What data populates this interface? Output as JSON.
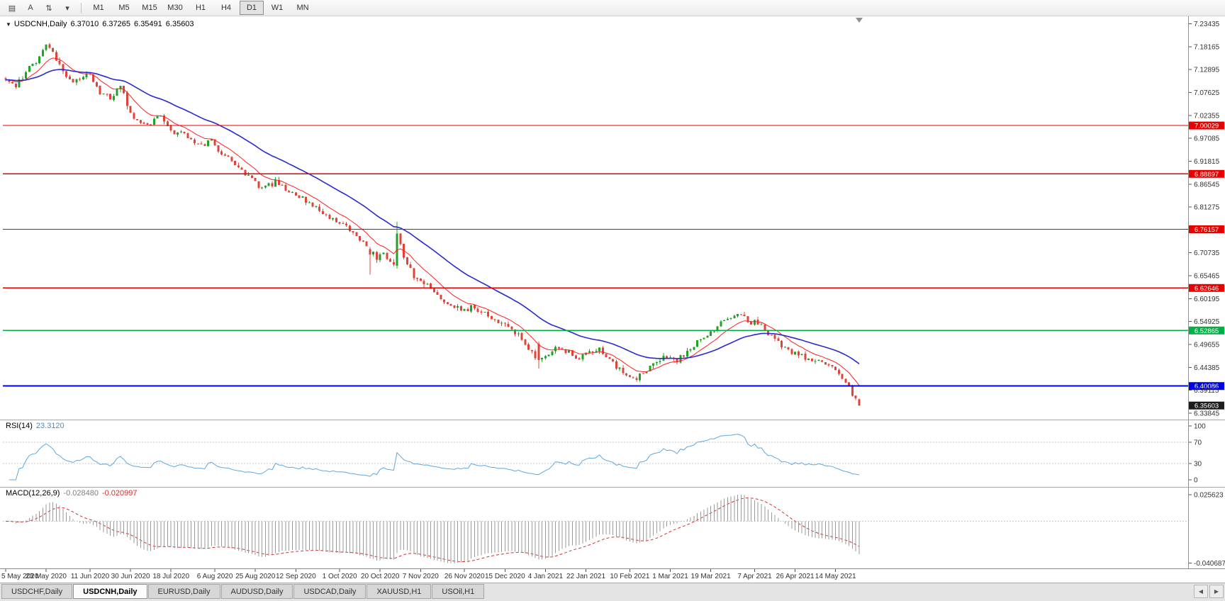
{
  "toolbar": {
    "tools": [
      {
        "name": "chart-list-icon",
        "glyph": "▤"
      },
      {
        "name": "text-tool-icon",
        "glyph": "A"
      },
      {
        "name": "sort-arrows-icon",
        "glyph": "⇅"
      },
      {
        "name": "dropdown-arrow-icon",
        "glyph": "▾"
      }
    ],
    "timeframes": [
      {
        "label": "M1",
        "active": false
      },
      {
        "label": "M5",
        "active": false
      },
      {
        "label": "M15",
        "active": false
      },
      {
        "label": "M30",
        "active": false
      },
      {
        "label": "H1",
        "active": false
      },
      {
        "label": "H4",
        "active": false
      },
      {
        "label": "D1",
        "active": true
      },
      {
        "label": "W1",
        "active": false
      },
      {
        "label": "MN",
        "active": false
      }
    ]
  },
  "tabs": {
    "scroll_left": "◀",
    "scroll_right": "▶",
    "items": [
      {
        "label": "USDCHF,Daily",
        "active": false
      },
      {
        "label": "USDCNH,Daily",
        "active": true
      },
      {
        "label": "EURUSD,Daily",
        "active": false
      },
      {
        "label": "AUDUSD,Daily",
        "active": false
      },
      {
        "label": "USDCAD,Daily",
        "active": false
      },
      {
        "label": "XAUUSD,H1",
        "active": false
      },
      {
        "label": "USOil,H1",
        "active": false
      }
    ]
  },
  "chart_data": {
    "type": "candlestick",
    "symbol": "USDCNH",
    "timeframe": "Daily",
    "title": "USDCNH,Daily",
    "title_dropdown": "▼",
    "ohlc": {
      "open": "6.37010",
      "high": "6.37265",
      "low": "6.35491",
      "close": "6.35603"
    },
    "bars": 254,
    "seed": 11,
    "candle_up_color": "#23a127",
    "candle_down_color": "#e04438",
    "price_axis": {
      "min": 6.327,
      "max": 7.245,
      "labels": [
        "7.23435",
        "7.18165",
        "7.12895",
        "7.07625",
        "7.02355",
        "6.97085",
        "6.91815",
        "6.86545",
        "6.81275",
        "6.70735",
        "6.65465",
        "6.60195",
        "6.54925",
        "6.49655",
        "6.44385",
        "6.39115",
        "6.33845"
      ]
    },
    "hlines": [
      {
        "price": 7.00029,
        "label": "7.00029",
        "color": "#e80000",
        "width": 1.2
      },
      {
        "price": 6.88897,
        "label": "6.88897",
        "color": "#e80000",
        "width": 1.2
      },
      {
        "price": 6.76157,
        "label": "6.76157",
        "color": "#e80000",
        "width": 1.2
      },
      {
        "price": 6.62646,
        "label": "6.62646",
        "color": "#e80000",
        "width": 1.2
      },
      {
        "price": 6.52865,
        "label": "6.52865",
        "color": "#00b044",
        "width": 1.5
      },
      {
        "price": 6.40086,
        "label": "6.40086",
        "color": "#0000e8",
        "width": 2
      }
    ],
    "current_price": {
      "value": 6.35603,
      "label": "6.35603"
    },
    "moving_averages": [
      {
        "period": 10,
        "type": "ema",
        "color": "#ff2020",
        "width": 1
      },
      {
        "period": 34,
        "type": "ema",
        "color": "#2a2ad2",
        "width": 1.6
      }
    ],
    "trend_anchors": [
      [
        0,
        7.105
      ],
      [
        3,
        7.09
      ],
      [
        6,
        7.125
      ],
      [
        9,
        7.15
      ],
      [
        12,
        7.185
      ],
      [
        14,
        7.17
      ],
      [
        17,
        7.125
      ],
      [
        20,
        7.1
      ],
      [
        24,
        7.125
      ],
      [
        28,
        7.075
      ],
      [
        31,
        7.065
      ],
      [
        34,
        7.09
      ],
      [
        38,
        7.01
      ],
      [
        42,
        7.005
      ],
      [
        46,
        7.02
      ],
      [
        50,
        6.985
      ],
      [
        54,
        6.975
      ],
      [
        58,
        6.955
      ],
      [
        61,
        6.965
      ],
      [
        64,
        6.935
      ],
      [
        68,
        6.91
      ],
      [
        72,
        6.885
      ],
      [
        76,
        6.855
      ],
      [
        80,
        6.87
      ],
      [
        84,
        6.845
      ],
      [
        88,
        6.835
      ],
      [
        92,
        6.81
      ],
      [
        96,
        6.79
      ],
      [
        100,
        6.775
      ],
      [
        104,
        6.745
      ],
      [
        107,
        6.72
      ],
      [
        110,
        6.695
      ],
      [
        112,
        6.71
      ],
      [
        114,
        6.685
      ],
      [
        115,
        6.68
      ],
      [
        116,
        6.75
      ],
      [
        118,
        6.7
      ],
      [
        121,
        6.655
      ],
      [
        124,
        6.64
      ],
      [
        127,
        6.615
      ],
      [
        130,
        6.6
      ],
      [
        133,
        6.585
      ],
      [
        136,
        6.575
      ],
      [
        139,
        6.585
      ],
      [
        142,
        6.565
      ],
      [
        145,
        6.55
      ],
      [
        148,
        6.54
      ],
      [
        151,
        6.525
      ],
      [
        154,
        6.5
      ],
      [
        156,
        6.475
      ],
      [
        158,
        6.46
      ],
      [
        161,
        6.475
      ],
      [
        164,
        6.49
      ],
      [
        167,
        6.48
      ],
      [
        170,
        6.465
      ],
      [
        173,
        6.475
      ],
      [
        176,
        6.485
      ],
      [
        179,
        6.46
      ],
      [
        182,
        6.44
      ],
      [
        185,
        6.425
      ],
      [
        187,
        6.415
      ],
      [
        190,
        6.44
      ],
      [
        193,
        6.455
      ],
      [
        196,
        6.47
      ],
      [
        199,
        6.46
      ],
      [
        202,
        6.48
      ],
      [
        205,
        6.5
      ],
      [
        208,
        6.515
      ],
      [
        211,
        6.54
      ],
      [
        214,
        6.555
      ],
      [
        217,
        6.565
      ],
      [
        220,
        6.55
      ],
      [
        223,
        6.545
      ],
      [
        226,
        6.52
      ],
      [
        229,
        6.5
      ],
      [
        232,
        6.48
      ],
      [
        235,
        6.47
      ],
      [
        238,
        6.465
      ],
      [
        241,
        6.455
      ],
      [
        244,
        6.445
      ],
      [
        246,
        6.435
      ],
      [
        248,
        6.415
      ],
      [
        250,
        6.395
      ],
      [
        252,
        6.372
      ],
      [
        253,
        6.356
      ]
    ],
    "special_bars": [
      {
        "bar": 108,
        "open": 6.716,
        "high": 6.721,
        "low": 6.657,
        "close": 6.704
      },
      {
        "bar": 116,
        "open": 6.678,
        "high": 6.779,
        "low": 6.671,
        "close": 6.752
      },
      {
        "bar": 158,
        "open": 6.498,
        "high": 6.503,
        "low": 6.441,
        "close": 6.461
      },
      {
        "bar": 253,
        "open": 6.3701,
        "high": 6.37265,
        "low": 6.35491,
        "close": 6.35603
      }
    ],
    "date_axis": [
      {
        "bar": 0,
        "label": "5 May 2020"
      },
      {
        "bar": 12,
        "label": "23 May 2020"
      },
      {
        "bar": 25,
        "label": "11 Jun 2020"
      },
      {
        "bar": 37,
        "label": "30 Jun 2020"
      },
      {
        "bar": 49,
        "label": "18 Jul 2020"
      },
      {
        "bar": 62,
        "label": "6 Aug 2020"
      },
      {
        "bar": 74,
        "label": "25 Aug 2020"
      },
      {
        "bar": 86,
        "label": "12 Sep 2020"
      },
      {
        "bar": 99,
        "label": "1 Oct 2020"
      },
      {
        "bar": 111,
        "label": "20 Oct 2020"
      },
      {
        "bar": 123,
        "label": "7 Nov 2020"
      },
      {
        "bar": 136,
        "label": "26 Nov 2020"
      },
      {
        "bar": 148,
        "label": "15 Dec 2020"
      },
      {
        "bar": 160,
        "label": "4 Jan 2021"
      },
      {
        "bar": 172,
        "label": "22 Jan 2021"
      },
      {
        "bar": 185,
        "label": "10 Feb 2021"
      },
      {
        "bar": 197,
        "label": "1 Mar 2021"
      },
      {
        "bar": 209,
        "label": "19 Mar 2021"
      },
      {
        "bar": 222,
        "label": "7 Apr 2021"
      },
      {
        "bar": 234,
        "label": "26 Apr 2021"
      },
      {
        "bar": 246,
        "label": "14 May 2021"
      }
    ],
    "rsi": {
      "name": "RSI(14)",
      "period": 14,
      "value": "23.3120",
      "color": "#5fa8dc",
      "scale_labels": [
        "100",
        "70",
        "30",
        "0"
      ],
      "level_lines": [
        70,
        30
      ]
    },
    "macd": {
      "name": "MACD(12,26,9)",
      "fast": 12,
      "slow": 26,
      "signal": 9,
      "value_main": "-0.028480",
      "value_signal": "-0.020997",
      "histogram_color": "#9a9a9a",
      "signal_color": "#d03030",
      "scale_labels": [
        "0.025623",
        "-0.040687"
      ],
      "range": [
        -0.0445,
        0.0285
      ]
    }
  }
}
